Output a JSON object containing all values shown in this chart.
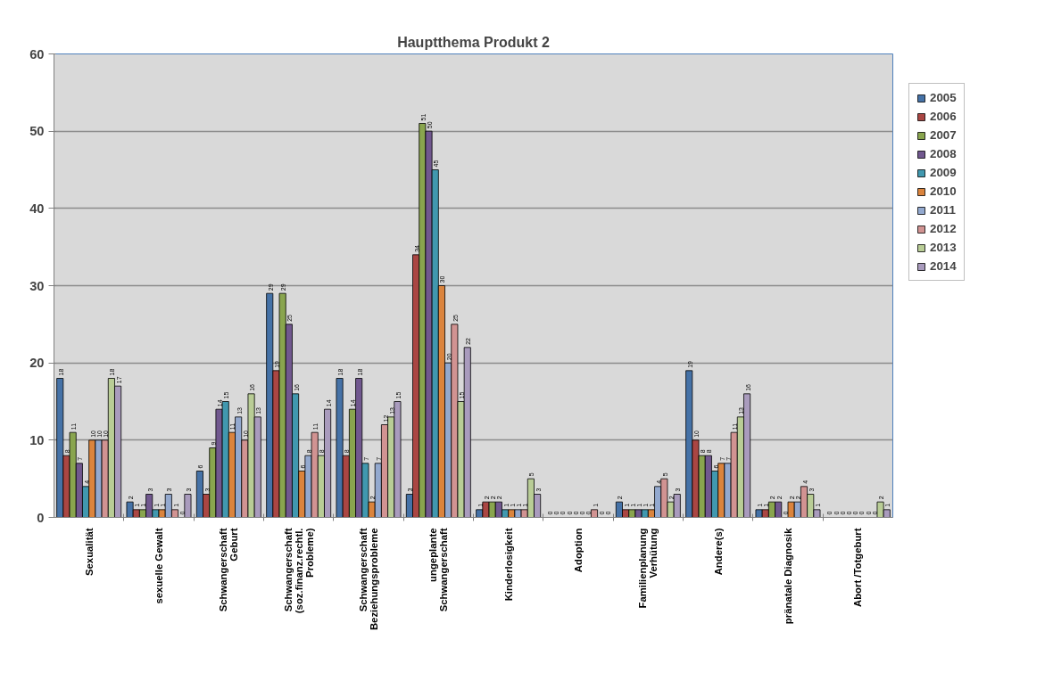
{
  "chart_data": {
    "type": "bar",
    "title": "Hauptthema Produkt 2",
    "categories": [
      "Sexualität",
      "sexuelle Gewalt",
      "Schwangerschaft\nGeburt",
      "Schwangerschaft\n(soz.finanz.rechtl.\nProbleme)",
      "Schwangerschaft\nBeziehungsprobleme",
      "ungeplante\nSchwangerschaft",
      "Kinderlosigkeit",
      "Adoption",
      "Familienplanung\nVerhütung",
      "Andere(s)",
      "pränatale Diagnosik",
      "Abort /Totgeburt"
    ],
    "series": [
      {
        "name": "2005",
        "color": "#4572a7",
        "values": [
          18,
          2,
          6,
          29,
          18,
          3,
          1,
          0,
          2,
          19,
          1,
          0
        ]
      },
      {
        "name": "2006",
        "color": "#aa4643",
        "values": [
          8,
          1,
          3,
          19,
          8,
          34,
          2,
          0,
          1,
          10,
          1,
          0
        ]
      },
      {
        "name": "2007",
        "color": "#89a54e",
        "values": [
          11,
          1,
          9,
          29,
          14,
          51,
          2,
          0,
          1,
          8,
          2,
          0
        ]
      },
      {
        "name": "2008",
        "color": "#71588f",
        "values": [
          7,
          3,
          14,
          25,
          18,
          50,
          2,
          0,
          1,
          8,
          2,
          0
        ]
      },
      {
        "name": "2009",
        "color": "#4198af",
        "values": [
          4,
          1,
          15,
          16,
          7,
          45,
          1,
          0,
          1,
          6,
          0,
          0
        ]
      },
      {
        "name": "2010",
        "color": "#db843d",
        "values": [
          10,
          1,
          11,
          6,
          2,
          30,
          1,
          0,
          1,
          7,
          2,
          0
        ]
      },
      {
        "name": "2011",
        "color": "#93a9cf",
        "values": [
          10,
          3,
          13,
          8,
          7,
          20,
          1,
          0,
          4,
          7,
          2,
          0
        ]
      },
      {
        "name": "2012",
        "color": "#d19392",
        "values": [
          10,
          1,
          10,
          11,
          12,
          25,
          1,
          1,
          5,
          11,
          4,
          0
        ]
      },
      {
        "name": "2013",
        "color": "#b9cd96",
        "values": [
          18,
          0,
          16,
          8,
          13,
          15,
          5,
          0,
          2,
          13,
          3,
          2
        ]
      },
      {
        "name": "2014",
        "color": "#a99bbd",
        "values": [
          17,
          3,
          13,
          14,
          15,
          22,
          3,
          0,
          3,
          16,
          1,
          1
        ]
      }
    ],
    "ylim": [
      0,
      60
    ],
    "yticks": [
      0,
      10,
      20,
      30,
      40,
      50,
      60
    ],
    "grid": "y",
    "legend": "right",
    "data_labels": true
  }
}
